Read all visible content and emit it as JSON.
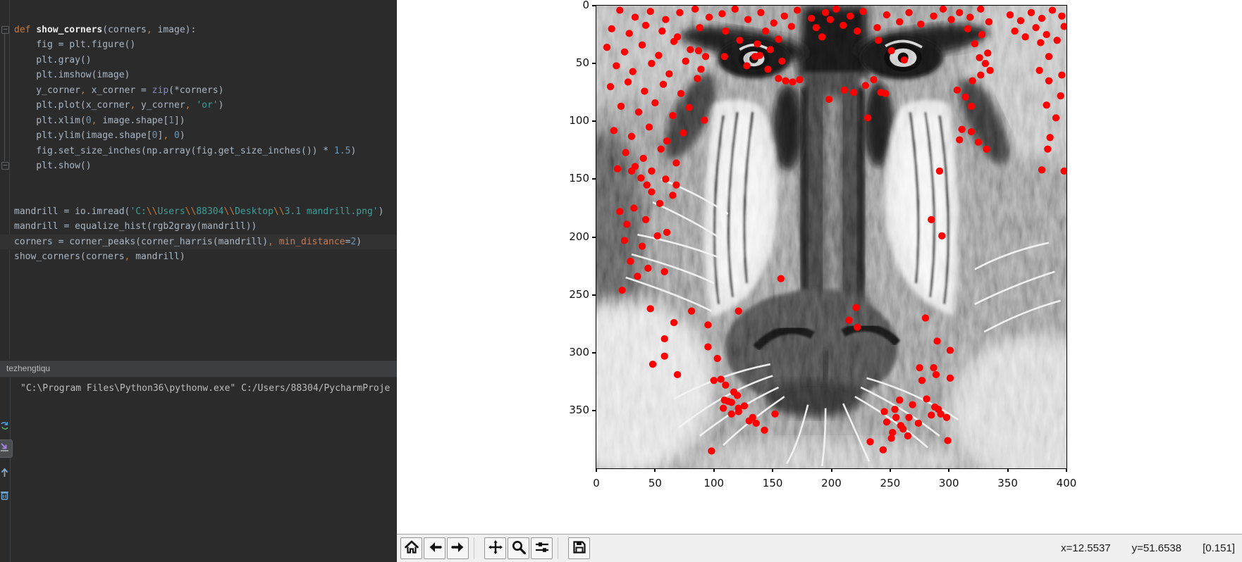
{
  "ide": {
    "run_tab": {
      "title": "tezhengtiqu"
    },
    "console": {
      "text": "\"C:\\Program Files\\Python36\\pythonw.exe\" C:/Users/88304/PycharmProje"
    },
    "editor_colors": {
      "background": "#2b2b2b",
      "caret_line": "#323232",
      "keyword": "#cc7832",
      "string": "#3f9e98",
      "number": "#6897bb"
    },
    "code": {
      "lines": [
        {
          "seg": []
        },
        {
          "seg": [
            [
              "k",
              "def "
            ],
            [
              "fn",
              "show_corners"
            ],
            [
              "v",
              "(corners"
            ],
            [
              "c",
              ","
            ],
            [
              "v",
              " image):"
            ]
          ]
        },
        {
          "seg": [
            [
              "v",
              "    fig = plt.figure()"
            ]
          ]
        },
        {
          "seg": [
            [
              "v",
              "    plt.gray()"
            ]
          ]
        },
        {
          "seg": [
            [
              "v",
              "    plt.imshow(image)"
            ]
          ]
        },
        {
          "seg": [
            [
              "v",
              "    y_corner"
            ],
            [
              "c",
              ","
            ],
            [
              "v",
              " x_corner = "
            ],
            [
              "b",
              "zip"
            ],
            [
              "v",
              "(*corners)"
            ]
          ]
        },
        {
          "seg": [
            [
              "v",
              "    plt.plot(x_corner"
            ],
            [
              "c",
              ","
            ],
            [
              "v",
              " y_corner"
            ],
            [
              "c",
              ","
            ],
            [
              "v",
              " "
            ],
            [
              "s",
              "'or'"
            ],
            [
              "v",
              ")"
            ]
          ]
        },
        {
          "seg": [
            [
              "v",
              "    plt.xlim("
            ],
            [
              "n",
              "0"
            ],
            [
              "c",
              ","
            ],
            [
              "v",
              " image.shape["
            ],
            [
              "n",
              "1"
            ],
            [
              "v",
              "])"
            ]
          ]
        },
        {
          "seg": [
            [
              "v",
              "    plt.ylim(image.shape["
            ],
            [
              "n",
              "0"
            ],
            [
              "v",
              "]"
            ],
            [
              "c",
              ","
            ],
            [
              "v",
              " "
            ],
            [
              "n",
              "0"
            ],
            [
              "v",
              ")"
            ]
          ]
        },
        {
          "seg": [
            [
              "v",
              "    fig.set_size_inches(np.array(fig.get_size_inches()) * "
            ],
            [
              "n",
              "1.5"
            ],
            [
              "v",
              ")"
            ]
          ]
        },
        {
          "seg": [
            [
              "v",
              "    plt.show()"
            ]
          ]
        },
        {
          "seg": []
        },
        {
          "seg": []
        },
        {
          "seg": [
            [
              "v",
              "mandrill = io.imread("
            ],
            [
              "s",
              "'C:"
            ],
            [
              "e",
              "\\\\"
            ],
            [
              "s",
              "Users"
            ],
            [
              "e",
              "\\\\"
            ],
            [
              "s",
              "88304"
            ],
            [
              "e",
              "\\\\"
            ],
            [
              "s",
              "Desktop"
            ],
            [
              "e",
              "\\\\"
            ],
            [
              "s",
              "3.1 mandrill.png'"
            ],
            [
              "v",
              ")"
            ]
          ]
        },
        {
          "seg": [
            [
              "v",
              "mandrill = equalize_hist(rgb2gray(mandrill))"
            ]
          ]
        },
        {
          "hl": true,
          "seg": [
            [
              "v",
              "corners = corner_peaks(corner_harris(mandrill)"
            ],
            [
              "c",
              ","
            ],
            [
              "v",
              " "
            ],
            [
              "a",
              "min_distance"
            ],
            [
              "v",
              "="
            ],
            [
              "n",
              "2"
            ],
            [
              "v",
              ")"
            ]
          ]
        },
        {
          "seg": [
            [
              "v",
              "show_corners(corners"
            ],
            [
              "c",
              ","
            ],
            [
              "v",
              " mandrill)"
            ]
          ]
        }
      ]
    }
  },
  "figure": {
    "toolbar": {
      "buttons": [
        {
          "icon": "home-icon",
          "label": "home"
        },
        {
          "icon": "back-icon",
          "label": "back"
        },
        {
          "icon": "forward-icon",
          "label": "forward"
        },
        {
          "icon": "pan-icon",
          "label": "pan",
          "group": true
        },
        {
          "icon": "zoom-icon",
          "label": "zoom"
        },
        {
          "icon": "subplots-icon",
          "label": "subplots"
        },
        {
          "icon": "save-icon",
          "label": "save",
          "group": true
        }
      ],
      "status": {
        "x": "x=12.5537",
        "y": "y=51.6538",
        "value": "[0.151]"
      }
    }
  },
  "chart_data": {
    "type": "scatter",
    "title": "",
    "xlabel": "",
    "ylabel": "",
    "xlim": [
      0,
      400
    ],
    "ylim": [
      400,
      0
    ],
    "x_ticks": [
      0,
      50,
      100,
      150,
      200,
      250,
      300,
      350,
      400
    ],
    "y_ticks": [
      0,
      50,
      100,
      150,
      200,
      250,
      300,
      350
    ],
    "grid": false,
    "legend": "none",
    "background": "grayscale mandrill face image (equalize_hist)",
    "marker": {
      "color": "#ff0000",
      "style": "o",
      "radius_px": 5
    },
    "points": [
      [
        20,
        4
      ],
      [
        33,
        10
      ],
      [
        46,
        5
      ],
      [
        59,
        12
      ],
      [
        71,
        6
      ],
      [
        84,
        3
      ],
      [
        96,
        10
      ],
      [
        13,
        20
      ],
      [
        28,
        24
      ],
      [
        42,
        17
      ],
      [
        56,
        22
      ],
      [
        69,
        27
      ],
      [
        88,
        19
      ],
      [
        9,
        36
      ],
      [
        24,
        40
      ],
      [
        39,
        34
      ],
      [
        53,
        43
      ],
      [
        66,
        31
      ],
      [
        80,
        38
      ],
      [
        93,
        44
      ],
      [
        17,
        52
      ],
      [
        31,
        57
      ],
      [
        47,
        50
      ],
      [
        62,
        59
      ],
      [
        76,
        48
      ],
      [
        89,
        55
      ],
      [
        12,
        70
      ],
      [
        27,
        66
      ],
      [
        41,
        74
      ],
      [
        57,
        68
      ],
      [
        72,
        76
      ],
      [
        86,
        63
      ],
      [
        21,
        87
      ],
      [
        36,
        92
      ],
      [
        50,
        84
      ],
      [
        65,
        95
      ],
      [
        79,
        88
      ],
      [
        92,
        99
      ],
      [
        15,
        108
      ],
      [
        30,
        113
      ],
      [
        45,
        105
      ],
      [
        60,
        117
      ],
      [
        74,
        110
      ],
      [
        25,
        127
      ],
      [
        40,
        132
      ],
      [
        55,
        124
      ],
      [
        68,
        136
      ],
      [
        47,
        143
      ],
      [
        33,
        139
      ],
      [
        107,
        7
      ],
      [
        118,
        3
      ],
      [
        129,
        12
      ],
      [
        140,
        6
      ],
      [
        151,
        15
      ],
      [
        144,
        22
      ],
      [
        160,
        9
      ],
      [
        171,
        4
      ],
      [
        183,
        11
      ],
      [
        195,
        6
      ],
      [
        155,
        29
      ],
      [
        137,
        33
      ],
      [
        122,
        30
      ],
      [
        110,
        22
      ],
      [
        166,
        18
      ],
      [
        135,
        44
      ],
      [
        148,
        38
      ],
      [
        158,
        48
      ],
      [
        146,
        55
      ],
      [
        128,
        52
      ],
      [
        139,
        43
      ],
      [
        109,
        44
      ],
      [
        87,
        39
      ],
      [
        155,
        63
      ],
      [
        161,
        65
      ],
      [
        167,
        66
      ],
      [
        173,
        64
      ],
      [
        204,
        3
      ],
      [
        216,
        9
      ],
      [
        227,
        5
      ],
      [
        210,
        17
      ],
      [
        222,
        22
      ],
      [
        199,
        12
      ],
      [
        239,
        19
      ],
      [
        247,
        8
      ],
      [
        258,
        14
      ],
      [
        266,
        6
      ],
      [
        276,
        16
      ],
      [
        287,
        9
      ],
      [
        295,
        3
      ],
      [
        302,
        12
      ],
      [
        240,
        30
      ],
      [
        187,
        19
      ],
      [
        192,
        27
      ],
      [
        262,
        47
      ],
      [
        251,
        39
      ],
      [
        236,
        64
      ],
      [
        229,
        69
      ],
      [
        242,
        75
      ],
      [
        246,
        76
      ],
      [
        219,
        75
      ],
      [
        211,
        73
      ],
      [
        198,
        81
      ],
      [
        231,
        97
      ],
      [
        309,
        6
      ],
      [
        318,
        10
      ],
      [
        327,
        3
      ],
      [
        334,
        14
      ],
      [
        316,
        20
      ],
      [
        328,
        25
      ],
      [
        322,
        33
      ],
      [
        333,
        41
      ],
      [
        326,
        45
      ],
      [
        331,
        50
      ],
      [
        335,
        56
      ],
      [
        327,
        60
      ],
      [
        320,
        65
      ],
      [
        307,
        73
      ],
      [
        314,
        79
      ],
      [
        319,
        87
      ],
      [
        311,
        107
      ],
      [
        309,
        116
      ],
      [
        319,
        109
      ],
      [
        325,
        118
      ],
      [
        332,
        124
      ],
      [
        352,
        8
      ],
      [
        361,
        13
      ],
      [
        370,
        6
      ],
      [
        379,
        11
      ],
      [
        388,
        4
      ],
      [
        396,
        9
      ],
      [
        356,
        22
      ],
      [
        365,
        27
      ],
      [
        374,
        19
      ],
      [
        383,
        25
      ],
      [
        392,
        30
      ],
      [
        398,
        18
      ],
      [
        378,
        32
      ],
      [
        385,
        44
      ],
      [
        377,
        56
      ],
      [
        385,
        65
      ],
      [
        396,
        60
      ],
      [
        383,
        86
      ],
      [
        395,
        78
      ],
      [
        391,
        97
      ],
      [
        386,
        114
      ],
      [
        384,
        124
      ],
      [
        379,
        142
      ],
      [
        398,
        143
      ],
      [
        18,
        141
      ],
      [
        30,
        143
      ],
      [
        38,
        149
      ],
      [
        59,
        150
      ],
      [
        68,
        155
      ],
      [
        43,
        155
      ],
      [
        47,
        161
      ],
      [
        65,
        164
      ],
      [
        54,
        171
      ],
      [
        26,
        189
      ],
      [
        42,
        185
      ],
      [
        60,
        196
      ],
      [
        20,
        178
      ],
      [
        32,
        175
      ],
      [
        24,
        203
      ],
      [
        39,
        208
      ],
      [
        52,
        199
      ],
      [
        29,
        221
      ],
      [
        44,
        227
      ],
      [
        35,
        234
      ],
      [
        58,
        230
      ],
      [
        46,
        262
      ],
      [
        22,
        246
      ],
      [
        157,
        236
      ],
      [
        292,
        143
      ],
      [
        285,
        185
      ],
      [
        294,
        199
      ],
      [
        81,
        264
      ],
      [
        121,
        264
      ],
      [
        221,
        261
      ],
      [
        66,
        274
      ],
      [
        95,
        276
      ],
      [
        280,
        270
      ],
      [
        58,
        288
      ],
      [
        95,
        295
      ],
      [
        58,
        303
      ],
      [
        103,
        305
      ],
      [
        69,
        319
      ],
      [
        48,
        310
      ],
      [
        290,
        290
      ],
      [
        301,
        298
      ],
      [
        275,
        313
      ],
      [
        287,
        313
      ],
      [
        289,
        319
      ],
      [
        301,
        322
      ],
      [
        277,
        324
      ],
      [
        100,
        324
      ],
      [
        106,
        323
      ],
      [
        110,
        328
      ],
      [
        117,
        334
      ],
      [
        120,
        337
      ],
      [
        109,
        341
      ],
      [
        112,
        342
      ],
      [
        115,
        343
      ],
      [
        108,
        348
      ],
      [
        121,
        348
      ],
      [
        115,
        353
      ],
      [
        121,
        351
      ],
      [
        130,
        359
      ],
      [
        136,
        361
      ],
      [
        143,
        367
      ],
      [
        152,
        353
      ],
      [
        98,
        385
      ],
      [
        126,
        346
      ],
      [
        133,
        356
      ],
      [
        245,
        351
      ],
      [
        254,
        349
      ],
      [
        259,
        363
      ],
      [
        252,
        369
      ],
      [
        261,
        366
      ],
      [
        251,
        374
      ],
      [
        281,
        340
      ],
      [
        288,
        347
      ],
      [
        293,
        353
      ],
      [
        298,
        356
      ],
      [
        285,
        354
      ],
      [
        291,
        349
      ],
      [
        299,
        376
      ],
      [
        269,
        345
      ],
      [
        266,
        356
      ],
      [
        274,
        361
      ],
      [
        258,
        341
      ],
      [
        247,
        360
      ],
      [
        255,
        356
      ],
      [
        265,
        372
      ],
      [
        215,
        272
      ],
      [
        222,
        278
      ],
      [
        233,
        377
      ],
      [
        244,
        384
      ]
    ]
  }
}
